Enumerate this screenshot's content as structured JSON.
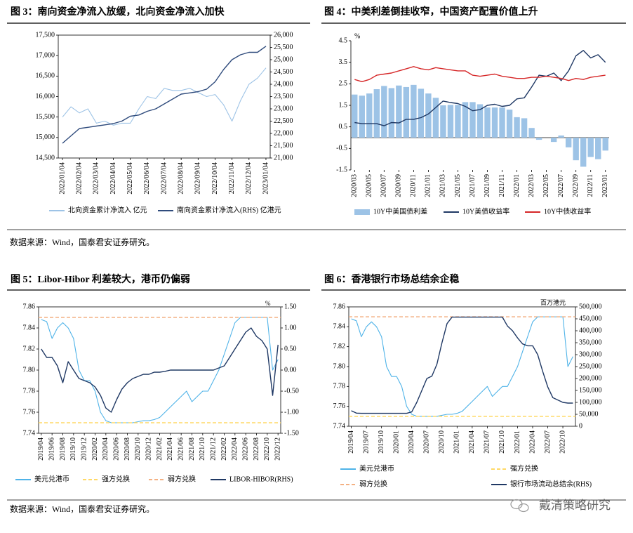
{
  "chart_data": [
    {
      "type": "line",
      "title": "图 3：南向资金净流入放缓，北向资金净流入加快",
      "categories": [
        "2022/01/04",
        null,
        "2022/02/04",
        null,
        "2022/03/04",
        null,
        "2022/04/04",
        null,
        "2022/05/04",
        null,
        "2022/06/04",
        null,
        "2022/07/04",
        null,
        "2022/08/04",
        null,
        "2022/09/04",
        null,
        "2022/10/04",
        null,
        "2022/11/04",
        null,
        "2022/12/04",
        null,
        "2023/01/04"
      ],
      "series": [
        {
          "name": "北向资金累计净流入 亿元",
          "color": "#9dc3e6",
          "values": [
            15500,
            15750,
            15600,
            15700,
            15350,
            15400,
            15300,
            15350,
            15350,
            15700,
            16000,
            15950,
            16200,
            16150,
            16150,
            16200,
            16100,
            16000,
            16050,
            15800,
            15400,
            15900,
            16300,
            16450,
            16700
          ]
        },
        {
          "name": "南向资金累计净流入(RHS) 亿港元",
          "color": "#2f4b7c",
          "axis": "y2",
          "values": [
            21600,
            21900,
            22200,
            22250,
            22300,
            22350,
            22400,
            22500,
            22700,
            22750,
            22900,
            23000,
            23200,
            23400,
            23600,
            23650,
            23700,
            23800,
            24100,
            24600,
            25000,
            25200,
            25300,
            25300,
            25550
          ]
        }
      ],
      "ylim": [
        14500,
        17500
      ],
      "yticks": [
        {
          "value": 14500,
          "label": "14,500"
        },
        {
          "value": 15000,
          "label": "15,000"
        },
        {
          "value": 15500,
          "label": "15,500"
        },
        {
          "value": 16000,
          "label": "16,000"
        },
        {
          "value": 16500,
          "label": "16,500"
        },
        {
          "value": 17000,
          "label": "17,000"
        },
        {
          "value": 17500,
          "label": "17,500"
        }
      ],
      "y2lim": [
        21000,
        26000
      ],
      "y2ticks": [
        {
          "value": 21000,
          "label": "21,000"
        },
        {
          "value": 21500,
          "label": "21,500"
        },
        {
          "value": 22000,
          "label": "22,000"
        },
        {
          "value": 22500,
          "label": "22,500"
        },
        {
          "value": 23000,
          "label": "23,000"
        },
        {
          "value": 23500,
          "label": "23,500"
        },
        {
          "value": 24000,
          "label": "24,000"
        },
        {
          "value": 24500,
          "label": "24,500"
        },
        {
          "value": 25000,
          "label": "25,000"
        },
        {
          "value": 25500,
          "label": "25,500"
        },
        {
          "value": 26000,
          "label": "26,000"
        }
      ]
    },
    {
      "type": "line",
      "title": "图 4：中美利差倒挂收窄，中国资产配置价值上升",
      "yunit": "%",
      "categories": [
        "2020/03",
        null,
        "2020/05",
        null,
        "2020/07",
        null,
        "2020/09",
        null,
        "2020/11",
        null,
        "2021/01",
        null,
        "2021/03",
        null,
        "2021/05",
        null,
        "2021/07",
        null,
        "2021/09",
        null,
        "2021/11",
        null,
        "2022/01",
        null,
        "2022/03",
        null,
        "2022/05",
        null,
        "2022/07",
        null,
        "2022/09",
        null,
        "2022/11",
        null,
        "2023/01"
      ],
      "series": [
        {
          "name": "10Y中美国债利差",
          "color": "#9dc3e6",
          "kind": "bar",
          "values": [
            2.0,
            1.95,
            2.05,
            2.25,
            2.4,
            2.3,
            2.42,
            2.35,
            2.45,
            2.27,
            2.05,
            1.85,
            1.5,
            1.52,
            1.52,
            1.65,
            1.65,
            1.55,
            1.4,
            1.4,
            1.4,
            1.3,
            0.95,
            0.9,
            0.45,
            -0.1,
            0,
            -0.2,
            0.1,
            -0.45,
            -1.05,
            -1.35,
            -0.9,
            -1.0,
            -0.6
          ]
        },
        {
          "name": "10Y美债收益率",
          "color": "#1f3864",
          "values": [
            0.7,
            0.65,
            0.65,
            0.65,
            0.55,
            0.7,
            0.68,
            0.85,
            0.85,
            0.93,
            1.1,
            1.4,
            1.7,
            1.63,
            1.58,
            1.45,
            1.25,
            1.3,
            1.5,
            1.55,
            1.45,
            1.5,
            1.8,
            1.85,
            2.35,
            2.9,
            2.85,
            3.0,
            2.65,
            3.1,
            3.8,
            4.05,
            3.7,
            3.85,
            3.5
          ]
        },
        {
          "name": "10Y中债收益率",
          "color": "#d62728",
          "values": [
            2.7,
            2.6,
            2.7,
            2.9,
            2.95,
            3.0,
            3.1,
            3.2,
            3.3,
            3.2,
            3.15,
            3.25,
            3.2,
            3.15,
            3.1,
            3.1,
            2.9,
            2.85,
            2.9,
            2.95,
            2.85,
            2.8,
            2.75,
            2.75,
            2.8,
            2.8,
            2.85,
            2.8,
            2.75,
            2.65,
            2.75,
            2.7,
            2.8,
            2.85,
            2.9
          ]
        }
      ],
      "ylim": [
        -1.5,
        4.5
      ],
      "yticks": [
        -1.5,
        -0.5,
        0.5,
        1.5,
        2.5,
        3.5,
        4.5
      ]
    },
    {
      "type": "line",
      "title": "图 5：Libor-Hibor 利差较大，港币仍偏弱",
      "y2unit": "%",
      "categories": [
        "2019/04",
        null,
        "2019/06",
        null,
        "2019/08",
        null,
        "2019/10",
        null,
        "2019/12",
        null,
        "2020/02",
        null,
        "2020/04",
        null,
        "2020/06",
        null,
        "2020/08",
        null,
        "2020/10",
        null,
        "2020/12",
        null,
        "2021/02",
        null,
        "2021/04",
        null,
        "2021/06",
        null,
        "2021/08",
        null,
        "2021/10",
        null,
        "2021/12",
        null,
        "2022/02",
        null,
        "2022/04",
        null,
        "2022/06",
        null,
        "2022/08",
        null,
        "2022/10",
        null,
        "2022/12"
      ],
      "series": [
        {
          "name": "美元兑港币",
          "color": "#4fb3e8",
          "values": [
            7.848,
            7.846,
            7.83,
            7.84,
            7.845,
            7.84,
            7.83,
            7.8,
            7.79,
            7.79,
            7.78,
            7.76,
            7.752,
            7.75,
            7.75,
            7.75,
            7.75,
            7.75,
            7.751,
            7.752,
            7.752,
            7.753,
            7.755,
            7.76,
            7.765,
            7.77,
            7.775,
            7.78,
            7.77,
            7.775,
            7.78,
            7.78,
            7.79,
            7.8,
            7.815,
            7.83,
            7.845,
            7.85,
            7.85,
            7.85,
            7.85,
            7.85,
            7.85,
            7.8,
            7.81
          ]
        },
        {
          "name": "强方兑换",
          "color": "#ffd966",
          "value": 7.75,
          "dash": true
        },
        {
          "name": "弱方兑换",
          "color": "#f4b183",
          "value": 7.85,
          "dash": true
        },
        {
          "name": "LIBOR-HIBOR(RHS)",
          "color": "#1f3864",
          "axis": "y2",
          "values": [
            0.5,
            0.3,
            0.3,
            0.1,
            -0.3,
            0.2,
            0.0,
            -0.2,
            -0.25,
            -0.3,
            -0.4,
            -0.6,
            -0.9,
            -1.0,
            -0.7,
            -0.45,
            -0.3,
            -0.2,
            -0.15,
            -0.1,
            -0.1,
            -0.05,
            -0.05,
            -0.03,
            0,
            0,
            0,
            0,
            0,
            0,
            0,
            0,
            0,
            0.05,
            0.1,
            0.3,
            0.5,
            0.7,
            0.9,
            1.0,
            0.8,
            0.7,
            0.5,
            -0.6,
            0.6
          ]
        }
      ],
      "ylim": [
        7.74,
        7.86
      ],
      "yticks": [
        7.74,
        7.76,
        7.78,
        {
          "value": 7.8,
          "label": "7.80"
        },
        7.82,
        7.84,
        7.86
      ],
      "y2lim": [
        -1.5,
        1.5
      ],
      "y2ticks": [
        {
          "value": -1.5,
          "label": "-1.50"
        },
        {
          "value": -1,
          "label": "-1.00"
        },
        {
          "value": -0.5,
          "label": "-0.50"
        },
        {
          "value": 0,
          "label": "0.00"
        },
        {
          "value": 0.5,
          "label": "0.50"
        },
        {
          "value": 1,
          "label": "1.00"
        },
        {
          "value": 1.5,
          "label": "1.50"
        }
      ]
    },
    {
      "type": "line",
      "title": "图 6：香港银行市场总结余企稳",
      "y2unit": "百万港元",
      "categories": [
        "2019/04",
        null,
        null,
        "2019/07",
        null,
        null,
        "2019/10",
        null,
        null,
        "2020/01",
        null,
        null,
        "2020/04",
        null,
        null,
        "2020/07",
        null,
        null,
        "2020/10",
        null,
        null,
        "2021/01",
        null,
        null,
        "2021/04",
        null,
        null,
        "2021/07",
        null,
        null,
        "2021/10",
        null,
        null,
        "2022/01",
        null,
        null,
        "2022/04",
        null,
        null,
        "2022/07",
        null,
        null,
        "2022/10",
        null,
        null
      ],
      "series": [
        {
          "name": "美元兑港币",
          "color": "#4fb3e8",
          "values": [
            7.848,
            7.846,
            7.83,
            7.84,
            7.845,
            7.84,
            7.83,
            7.8,
            7.79,
            7.79,
            7.78,
            7.76,
            7.752,
            7.75,
            7.75,
            7.75,
            7.75,
            7.75,
            7.751,
            7.752,
            7.752,
            7.753,
            7.755,
            7.76,
            7.765,
            7.77,
            7.775,
            7.78,
            7.77,
            7.775,
            7.78,
            7.78,
            7.79,
            7.8,
            7.815,
            7.83,
            7.845,
            7.85,
            7.85,
            7.85,
            7.85,
            7.85,
            7.85,
            7.8,
            7.81
          ]
        },
        {
          "name": "强方兑换",
          "color": "#ffd966",
          "value": 7.75,
          "dash": true
        },
        {
          "name": "弱方兑换",
          "color": "#f4b183",
          "value": 7.85,
          "dash": true
        },
        {
          "name": "银行市场流动总结余(RHS)",
          "color": "#1f3864",
          "axis": "y2",
          "values": [
            65000,
            55000,
            54000,
            54000,
            54000,
            54000,
            54000,
            54000,
            54000,
            54000,
            54000,
            54000,
            60000,
            100000,
            150000,
            200000,
            210000,
            260000,
            350000,
            430000,
            457000,
            457000,
            457000,
            457000,
            457000,
            457000,
            457000,
            457000,
            457000,
            457000,
            457000,
            420000,
            400000,
            370000,
            345000,
            337000,
            337000,
            300000,
            230000,
            165000,
            120000,
            110000,
            100000,
            97000,
            97000
          ]
        }
      ],
      "ylim": [
        7.74,
        7.86
      ],
      "yticks": [
        7.74,
        7.76,
        7.78,
        {
          "value": 7.8,
          "label": "7.80"
        },
        7.82,
        7.84,
        7.86
      ],
      "y2lim": [
        0,
        500000
      ],
      "y2ticks": [
        0,
        {
          "value": 50000,
          "label": "50,000"
        },
        {
          "value": 100000,
          "label": "100,000"
        },
        {
          "value": 150000,
          "label": "150,000"
        },
        {
          "value": 200000,
          "label": "200,000"
        },
        {
          "value": 250000,
          "label": "250,000"
        },
        {
          "value": 300000,
          "label": "300,000"
        },
        {
          "value": 350000,
          "label": "350,000"
        },
        {
          "value": 400000,
          "label": "400,000"
        },
        {
          "value": 450000,
          "label": "450,000"
        },
        {
          "value": 500000,
          "label": "500,000"
        }
      ]
    }
  ],
  "notes": [
    "数据来源：Wind，国泰君安证券研究。",
    "数据来源：Wind，国泰君安证券研究。"
  ],
  "watermark": "戴清策略研究"
}
